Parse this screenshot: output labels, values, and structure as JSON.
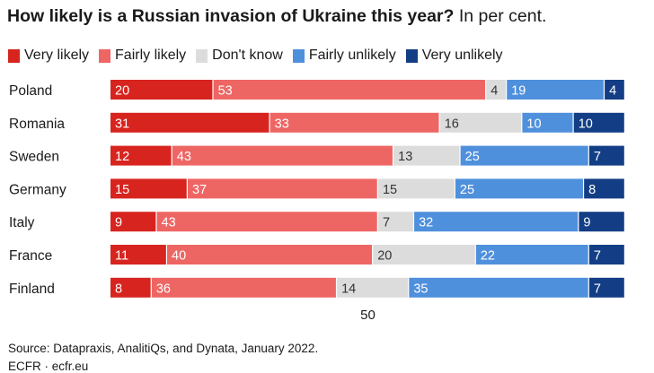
{
  "title": {
    "bold": "How likely is a Russian invasion of Ukraine this year?",
    "light": "In per cent."
  },
  "chart_data": {
    "type": "bar",
    "orientation": "horizontal",
    "stacked": true,
    "title": "How likely is a Russian invasion of Ukraine this year? In per cent.",
    "categories": [
      "Poland",
      "Romania",
      "Sweden",
      "Germany",
      "Italy",
      "France",
      "Finland"
    ],
    "series": [
      {
        "name": "Very likely",
        "color": "#d7241f",
        "label_color": "#ffffff",
        "values": [
          20,
          31,
          12,
          15,
          9,
          11,
          8
        ]
      },
      {
        "name": "Fairly likely",
        "color": "#ee6664",
        "label_color": "#ffffff",
        "values": [
          53,
          33,
          43,
          37,
          43,
          40,
          36
        ]
      },
      {
        "name": "Don't know",
        "color": "#dcdcdc",
        "label_color": "#333333",
        "values": [
          4,
          16,
          13,
          15,
          7,
          20,
          14
        ]
      },
      {
        "name": "Fairly unlikely",
        "color": "#4f90dc",
        "label_color": "#ffffff",
        "values": [
          19,
          10,
          25,
          25,
          32,
          22,
          35
        ]
      },
      {
        "name": "Very unlikely",
        "color": "#133e86",
        "label_color": "#ffffff",
        "values": [
          4,
          10,
          7,
          8,
          9,
          7,
          7
        ]
      }
    ],
    "x_tick": "50",
    "x_tick_value": 50,
    "xlim": [
      0,
      100
    ],
    "legend_position": "top"
  },
  "source": "Source: Datapraxis, AnalitiQs, and Dynata, January 2022.",
  "credit": "ECFR · ecfr.eu"
}
